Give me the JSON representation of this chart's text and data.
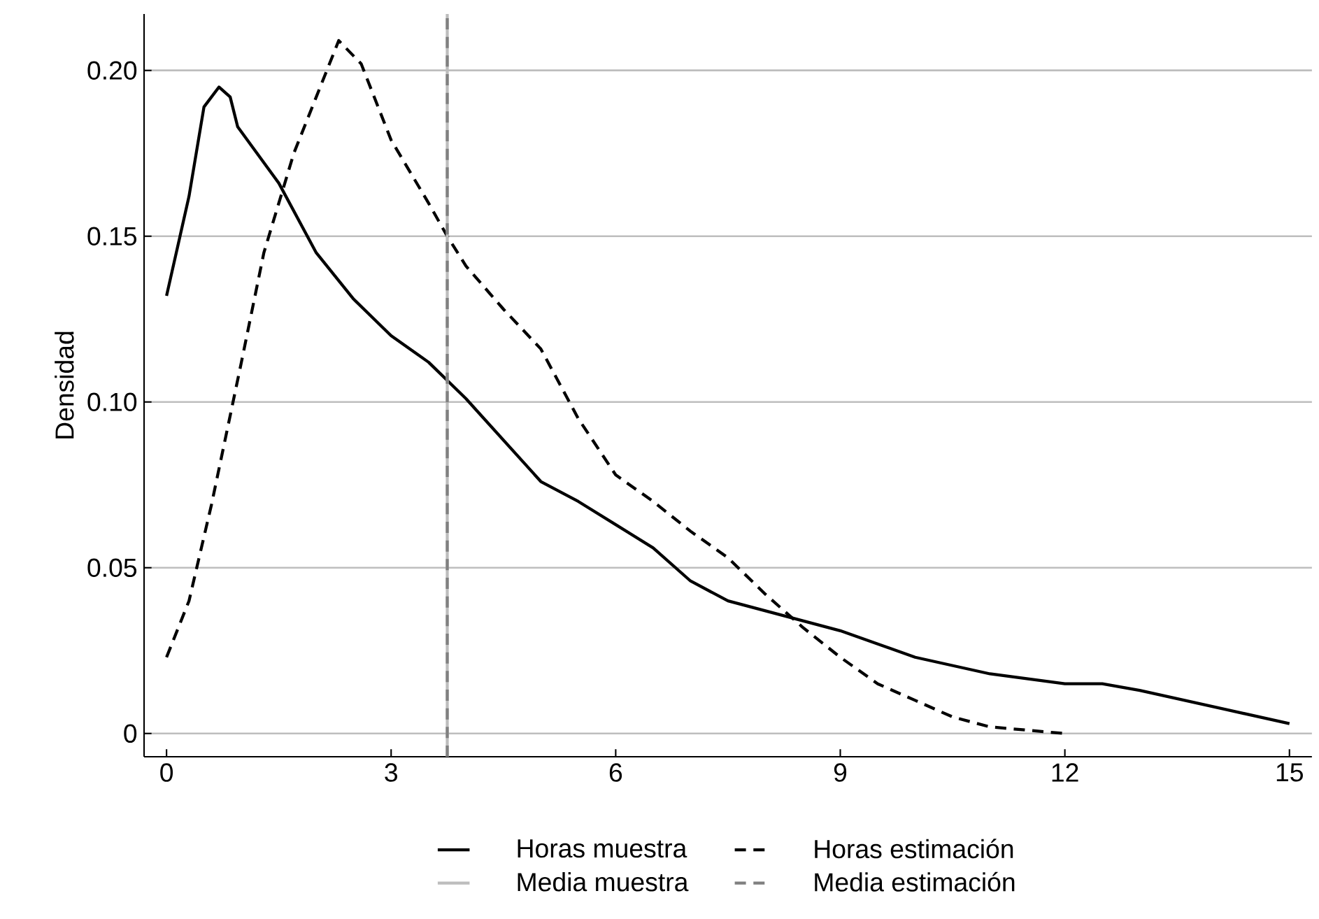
{
  "chart_data": {
    "type": "line",
    "ylabel": "Densidad",
    "xlim": [
      -0.3,
      15.3
    ],
    "ylim": [
      -0.007,
      0.217
    ],
    "xticks": [
      0,
      3,
      6,
      9,
      12,
      15
    ],
    "yticks": [
      0,
      {
        "value": 0.05,
        "label": "0.05"
      },
      {
        "value": 0.1,
        "label": "0.10"
      },
      {
        "value": 0.15,
        "label": "0.15"
      },
      {
        "value": 0.2,
        "label": "0.20"
      }
    ],
    "grid": "y",
    "legend": "bottom",
    "marker": "none",
    "series": [
      {
        "name": "Horas muestra",
        "color": "#000000",
        "line_style": "solid",
        "x": [
          0,
          0.3,
          0.5,
          0.7,
          0.85,
          0.95,
          1.5,
          2,
          2.5,
          3,
          3.5,
          4,
          4.2,
          5,
          5.5,
          6,
          6.5,
          7,
          7.5,
          8,
          8.5,
          9,
          9.5,
          10,
          11,
          12,
          12.5,
          13,
          14,
          15
        ],
        "values": [
          0.132,
          0.162,
          0.189,
          0.195,
          0.192,
          0.183,
          0.166,
          0.145,
          0.131,
          0.12,
          0.112,
          0.101,
          0.096,
          0.076,
          0.07,
          0.063,
          0.056,
          0.046,
          0.04,
          0.037,
          0.034,
          0.031,
          0.027,
          0.023,
          0.018,
          0.015,
          0.015,
          0.013,
          0.008,
          0.003
        ]
      },
      {
        "name": "Horas estimación",
        "color": "#000000",
        "line_style": "dashed",
        "x": [
          0,
          0.3,
          0.6,
          1,
          1.3,
          1.7,
          2,
          2.3,
          2.6,
          3,
          3.5,
          3.75,
          4,
          4.5,
          5,
          5.5,
          6,
          6.5,
          7,
          7.5,
          8,
          8.5,
          9,
          9.5,
          10,
          10.5,
          11,
          11.5,
          12
        ],
        "values": [
          0.023,
          0.04,
          0.069,
          0.112,
          0.145,
          0.175,
          0.192,
          0.209,
          0.202,
          0.179,
          0.16,
          0.15,
          0.141,
          0.128,
          0.116,
          0.095,
          0.078,
          0.07,
          0.061,
          0.053,
          0.042,
          0.032,
          0.023,
          0.015,
          0.01,
          0.005,
          0.002,
          0.001,
          0.0
        ]
      }
    ],
    "ref_lines": [
      {
        "axis": "x",
        "value": 3.75,
        "label": "Media muestra",
        "color": "#bdbdbd",
        "line_style": "solid"
      },
      {
        "axis": "x",
        "value": 3.75,
        "label": "Media estimación",
        "color": "#808080",
        "line_style": "dashed"
      }
    ]
  }
}
